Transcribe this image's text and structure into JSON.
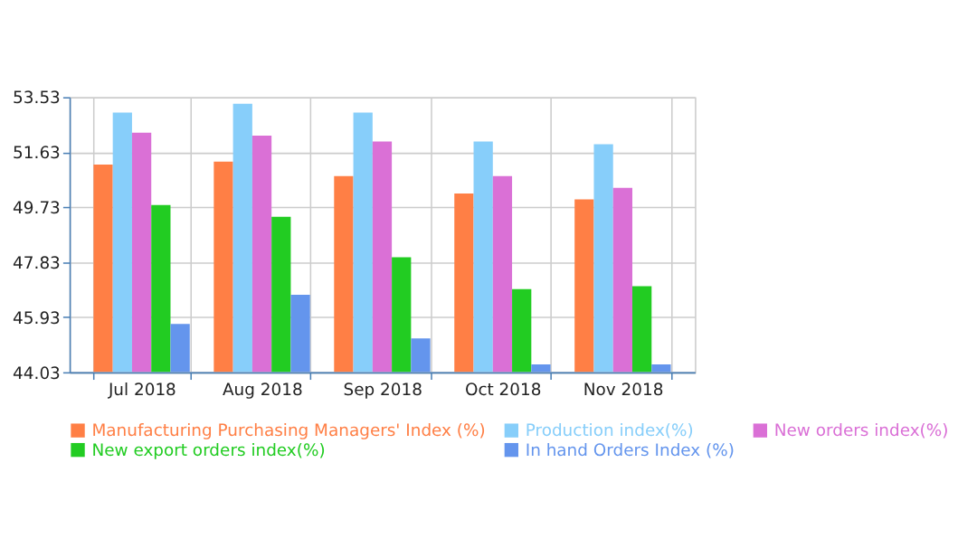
{
  "chart_data": {
    "type": "bar",
    "categories": [
      "Jul 2018",
      "Aug 2018",
      "Sep 2018",
      "Oct 2018",
      "Nov 2018"
    ],
    "series": [
      {
        "name": "Manufacturing Purchasing Managers' Index (%)",
        "color": "#ff7f45",
        "values": [
          51.2,
          51.3,
          50.8,
          50.2,
          50.0
        ]
      },
      {
        "name": "Production index(%)",
        "color": "#87cefa",
        "values": [
          53.0,
          53.3,
          53.0,
          52.0,
          51.9
        ]
      },
      {
        "name": "New orders index(%)",
        "color": "#da70d6",
        "values": [
          52.3,
          52.2,
          52.0,
          50.8,
          50.4
        ]
      },
      {
        "name": "New export orders index(%)",
        "color": "#22cc22",
        "values": [
          49.8,
          49.4,
          48.0,
          46.9,
          47.0
        ]
      },
      {
        "name": "In hand Orders Index (%)",
        "color": "#6495ed",
        "values": [
          45.7,
          46.7,
          45.2,
          44.3,
          44.3
        ]
      }
    ],
    "ylim": [
      44.03,
      53.53
    ],
    "yticks": [
      44.03,
      45.93,
      47.83,
      49.73,
      51.63,
      53.53
    ],
    "grid": true,
    "legend": "bottom"
  }
}
